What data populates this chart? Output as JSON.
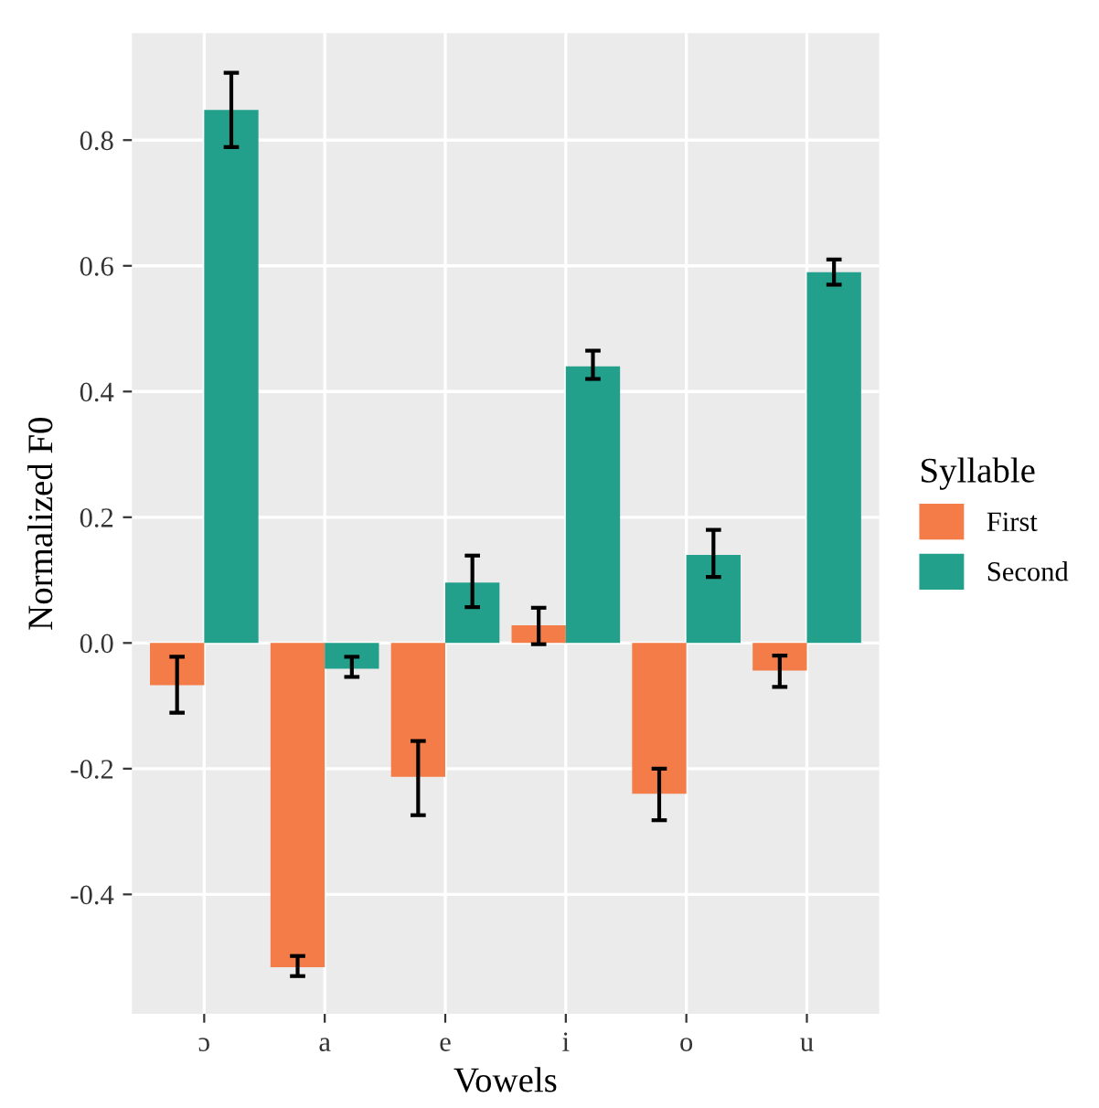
{
  "chart_data": {
    "type": "bar",
    "xlabel": "Vowels",
    "ylabel": "Normalized F0",
    "legend_title": "Syllable",
    "categories": [
      "ɔ",
      "a",
      "e",
      "i",
      "o",
      "u"
    ],
    "series": [
      {
        "name": "First",
        "color": "#f47c48",
        "values": [
          -0.067,
          -0.516,
          -0.213,
          0.028,
          -0.24,
          -0.044
        ],
        "errors": [
          [
            -0.111,
            -0.022
          ],
          [
            -0.53,
            -0.498
          ],
          [
            -0.274,
            -0.156
          ],
          [
            -0.002,
            0.056
          ],
          [
            -0.282,
            -0.2
          ],
          [
            -0.07,
            -0.02
          ]
        ]
      },
      {
        "name": "Second",
        "color": "#23a08c",
        "values": [
          0.848,
          -0.041,
          0.096,
          0.44,
          0.14,
          0.59
        ],
        "errors": [
          [
            0.789,
            0.907
          ],
          [
            -0.054,
            -0.022
          ],
          [
            0.057,
            0.139
          ],
          [
            0.42,
            0.465
          ],
          [
            0.105,
            0.18
          ],
          [
            0.57,
            0.61
          ]
        ]
      }
    ],
    "ylim": [
      -0.59,
      0.97
    ],
    "yticks": [
      {
        "value": -0.4,
        "label": "-0.4"
      },
      {
        "value": -0.2,
        "label": "-0.2"
      },
      {
        "value": 0,
        "label": "0.0"
      },
      {
        "value": 0.2,
        "label": "0.2"
      },
      {
        "value": 0.4,
        "label": "0.4"
      },
      {
        "value": 0.6,
        "label": "0.6"
      },
      {
        "value": 0.8,
        "label": "0.8"
      }
    ],
    "grid": true,
    "legend": "right"
  }
}
